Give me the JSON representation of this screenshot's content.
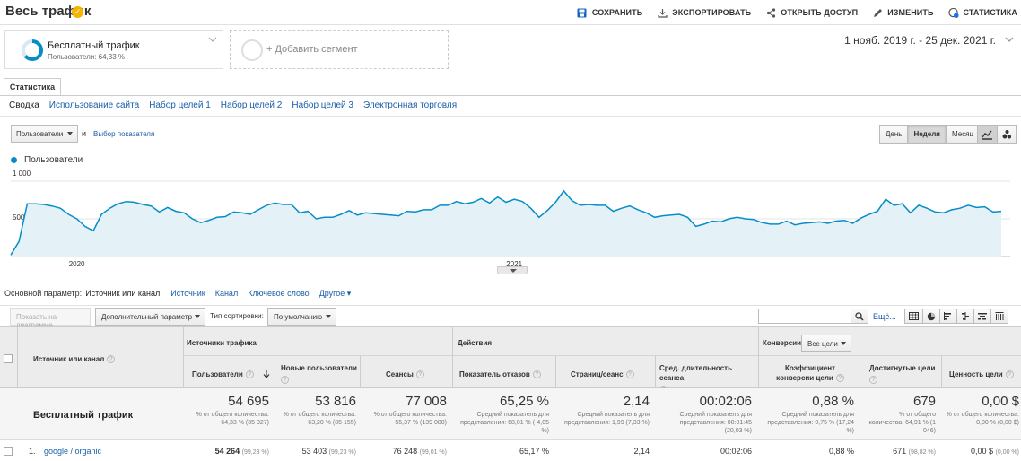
{
  "header": {
    "title": "Весь трафик",
    "actions": [
      {
        "label": "СОХРАНИТЬ",
        "icon": "save-icon"
      },
      {
        "label": "ЭКСПОРТИРОВАТЬ",
        "icon": "export-icon"
      },
      {
        "label": "ОТКРЫТЬ ДОСТУП",
        "icon": "share-icon"
      },
      {
        "label": "ИЗМЕНИТЬ",
        "icon": "pencil-icon"
      },
      {
        "label": "СТАТИСТИКА",
        "icon": "insights-icon"
      }
    ]
  },
  "segments": {
    "active": {
      "name": "Бесплатный трафик",
      "subtitle": "Пользователи: 64,33 %",
      "share": 0.6433
    },
    "add_label": "+ Добавить сегмент"
  },
  "date_range": "1 нояб. 2019 г. - 25 дек. 2021 г.",
  "report_tab": "Статистика",
  "subtabs": [
    "Сводка",
    "Использование сайта",
    "Набор целей 1",
    "Набор целей 2",
    "Набор целей 3",
    "Электронная торговля"
  ],
  "chart_controls": {
    "metric": "Пользователи",
    "and": "и",
    "choose_metric": "Выбор показателя",
    "periods": [
      "День",
      "Неделя",
      "Месяц"
    ],
    "active_period": "Неделя"
  },
  "chart_data": {
    "type": "area",
    "series": [
      {
        "name": "Пользователи",
        "values": [
          20,
          200,
          700,
          700,
          690,
          670,
          640,
          560,
          500,
          400,
          340,
          560,
          640,
          700,
          730,
          720,
          690,
          670,
          590,
          650,
          600,
          580,
          500,
          450,
          480,
          520,
          530,
          590,
          580,
          560,
          620,
          680,
          710,
          690,
          690,
          580,
          600,
          500,
          520,
          520,
          560,
          610,
          550,
          580,
          570,
          560,
          550,
          540,
          600,
          590,
          620,
          620,
          680,
          680,
          730,
          700,
          720,
          770,
          710,
          790,
          720,
          760,
          730,
          640,
          520,
          610,
          720,
          870,
          740,
          680,
          690,
          680,
          680,
          600,
          640,
          670,
          620,
          580,
          520,
          540,
          550,
          560,
          520,
          400,
          430,
          470,
          460,
          500,
          520,
          500,
          490,
          450,
          430,
          430,
          470,
          420,
          440,
          450,
          460,
          440,
          470,
          480,
          440,
          510,
          560,
          600,
          760,
          680,
          700,
          580,
          680,
          640,
          590,
          580,
          620,
          640,
          680,
          650,
          660,
          590,
          600
        ]
      }
    ],
    "yticks": [
      "1 000",
      "500"
    ],
    "ylim": [
      0,
      1000
    ],
    "x_labels": [
      {
        "label": "2020",
        "index": 8
      },
      {
        "label": "2021",
        "index": 61
      }
    ],
    "color": "#058dc7",
    "grid": true,
    "legend": "top-left"
  },
  "dimensions": {
    "label": "Основной параметр:",
    "active": "Источник или канал",
    "links": [
      "Источник",
      "Канал",
      "Ключевое слово",
      "Другое ▾"
    ]
  },
  "table_toolbar": {
    "plot_rows": "Показать на диаграмме",
    "secondary": "Дополнительный параметр",
    "sort_label": "Тип сортировки:",
    "sort_value": "По умолчанию",
    "search_placeholder": "",
    "more": "Ещё..."
  },
  "table": {
    "dim_header": "Источник или канал",
    "groups": {
      "acquisition": "Источники трафика",
      "behavior": "Действия",
      "conversions": "Конверсии",
      "goal_select": "Все цели"
    },
    "columns": [
      "Пользователи",
      "Новые пользователи",
      "Сеансы",
      "Показатель отказов",
      "Страниц/сеанс",
      "Сред. длительность сеанса",
      "Коэффициент конверсии цели",
      "Достигнутые цели",
      "Ценность цели"
    ],
    "total_label": "Бесплатный трафик",
    "totals": [
      {
        "value": "54 695",
        "note": "% от общего количества: 64,33 % (85 027)"
      },
      {
        "value": "53 816",
        "note": "% от общего количества: 63,20 % (85 155)"
      },
      {
        "value": "77 008",
        "note": "% от общего количества: 55,37 % (139 080)"
      },
      {
        "value": "65,25 %",
        "note": "Средний показатель для представления: 68,01 % (-4,05 %)"
      },
      {
        "value": "2,14",
        "note": "Средний показатель для представления: 1,99 (7,33 %)"
      },
      {
        "value": "00:02:06",
        "note": "Средний показатель для представления: 00:01:45 (20,03 %)"
      },
      {
        "value": "0,88 %",
        "note": "Средний показатель для представления: 0,75 % (17,24 %)"
      },
      {
        "value": "679",
        "note": "% от общего количества: 64,91 % (1 046)"
      },
      {
        "value": "0,00 $",
        "note": "% от общего количества: 0,00 % (0,00 $)"
      }
    ],
    "rows": [
      {
        "num": "1.",
        "source": "google / organic",
        "cells": [
          {
            "v": "54 264",
            "p": "(99,23 %)"
          },
          {
            "v": "53 403",
            "p": "(99,23 %)"
          },
          {
            "v": "76 248",
            "p": "(99,01 %)"
          },
          {
            "v": "65,17 %",
            "p": ""
          },
          {
            "v": "2,14",
            "p": ""
          },
          {
            "v": "00:02:06",
            "p": ""
          },
          {
            "v": "0,88 %",
            "p": ""
          },
          {
            "v": "671",
            "p": "(98,82 %)"
          },
          {
            "v": "0,00 $",
            "p": "(0,00 %)"
          }
        ]
      }
    ]
  }
}
